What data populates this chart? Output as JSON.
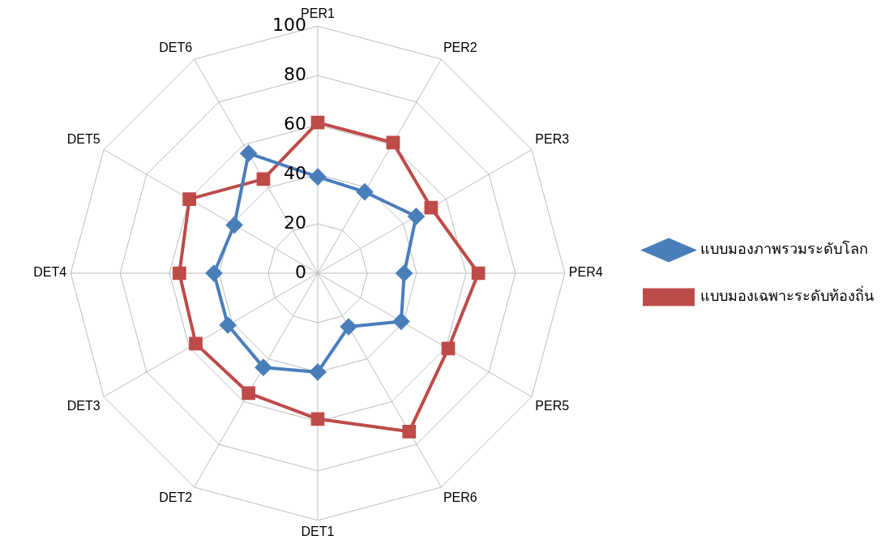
{
  "chart_data": {
    "type": "radar",
    "categories": [
      "PER1",
      "PER2",
      "PER3",
      "PER4",
      "PER5",
      "PER6",
      "DET1",
      "DET2",
      "DET3",
      "DET4",
      "DET5",
      "DET6"
    ],
    "series": [
      {
        "name": "แบบมองภาพรวมระดับโลก",
        "color": "#4a7ebb",
        "marker": "diamond",
        "values": [
          39,
          38,
          46,
          35,
          39,
          25,
          40,
          44,
          42,
          42,
          39,
          56
        ]
      },
      {
        "name": "แบบมองเฉพาะระดับท้องถิ่น",
        "color": "#be4b48",
        "marker": "square",
        "values": [
          61,
          61,
          53,
          65,
          61,
          74,
          59,
          56,
          57,
          56,
          60,
          44
        ]
      }
    ],
    "ylim": [
      0,
      100
    ],
    "yticks": [
      0,
      20,
      40,
      60,
      80,
      100
    ],
    "grid": true,
    "legend": "right"
  }
}
